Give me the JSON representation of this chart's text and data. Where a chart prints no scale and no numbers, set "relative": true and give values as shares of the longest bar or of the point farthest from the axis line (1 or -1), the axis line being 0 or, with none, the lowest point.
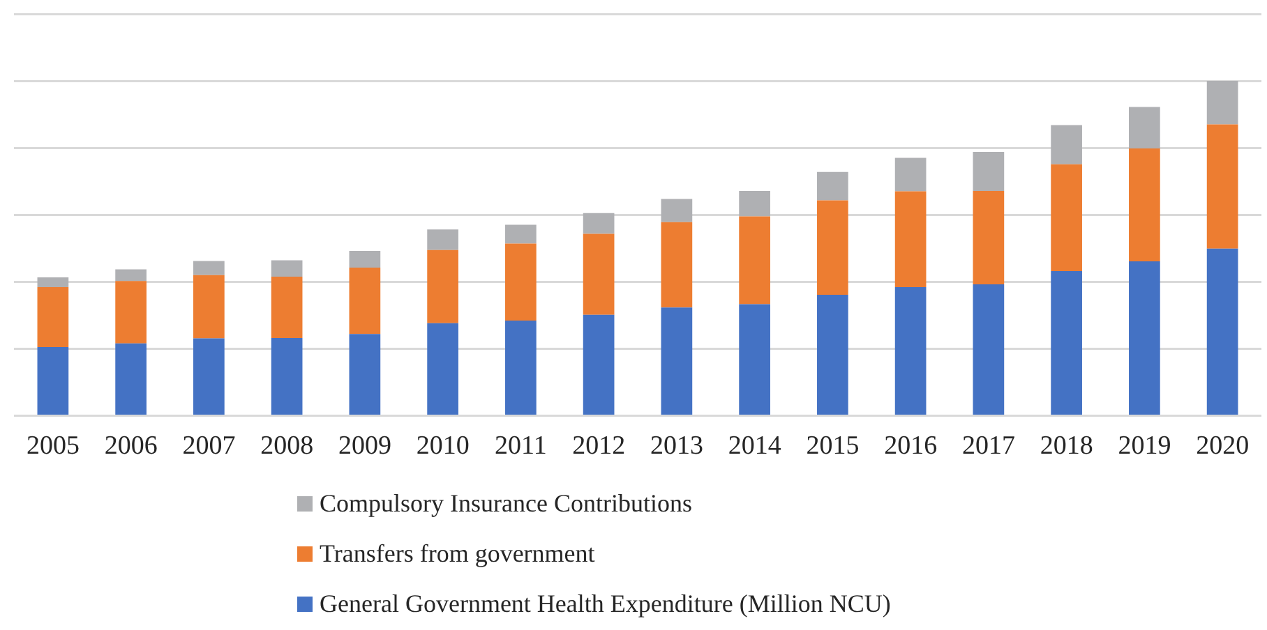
{
  "chart_data": {
    "type": "bar",
    "stacked": true,
    "relative": true,
    "grid": "y",
    "legend": "bottom",
    "categories": [
      "2005",
      "2006",
      "2007",
      "2008",
      "2009",
      "2010",
      "2011",
      "2012",
      "2013",
      "2014",
      "2015",
      "2016",
      "2017",
      "2018",
      "2019",
      "2020"
    ],
    "series": [
      {
        "name": "General Government Health Expenditure (Million NCU)",
        "color": "#4472c4",
        "values": [
          0.205,
          0.216,
          0.231,
          0.232,
          0.244,
          0.276,
          0.284,
          0.301,
          0.323,
          0.333,
          0.361,
          0.384,
          0.392,
          0.432,
          0.461,
          0.499
        ]
      },
      {
        "name": "Transfers from government",
        "color": "#ed7d31",
        "values": [
          0.179,
          0.186,
          0.189,
          0.183,
          0.198,
          0.219,
          0.23,
          0.242,
          0.255,
          0.262,
          0.282,
          0.286,
          0.279,
          0.319,
          0.337,
          0.371
        ]
      },
      {
        "name": "Compulsory Insurance Contributions",
        "color": "#afb0b3",
        "values": [
          0.029,
          0.035,
          0.042,
          0.049,
          0.05,
          0.061,
          0.056,
          0.062,
          0.069,
          0.076,
          0.085,
          0.1,
          0.117,
          0.117,
          0.124,
          0.13
        ]
      }
    ]
  }
}
